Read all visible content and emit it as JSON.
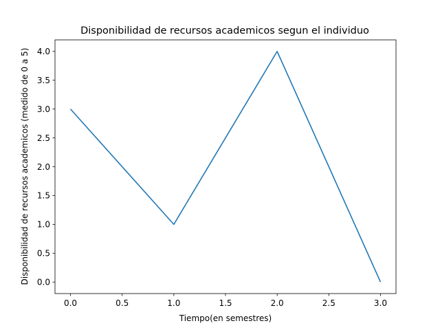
{
  "chart_data": {
    "type": "line",
    "title": "Disponibilidad de recursos academicos segun el individuo",
    "xlabel": "Tiempo(en semestres)",
    "ylabel": "Disponibilidad de recursos academicos (medido de 0 a 5)",
    "series": [
      {
        "x": [
          0,
          1,
          2,
          3
        ],
        "values": [
          3,
          1,
          4,
          0
        ],
        "color": "#1f77b4"
      }
    ],
    "xlim": [
      -0.15,
      3.15
    ],
    "ylim": [
      -0.2,
      4.2
    ],
    "xticks": [
      "0.0",
      "0.5",
      "1.0",
      "1.5",
      "2.0",
      "2.5",
      "3.0"
    ],
    "yticks": [
      "0.0",
      "0.5",
      "1.0",
      "1.5",
      "2.0",
      "2.5",
      "3.0",
      "3.5",
      "4.0"
    ],
    "grid": false
  }
}
